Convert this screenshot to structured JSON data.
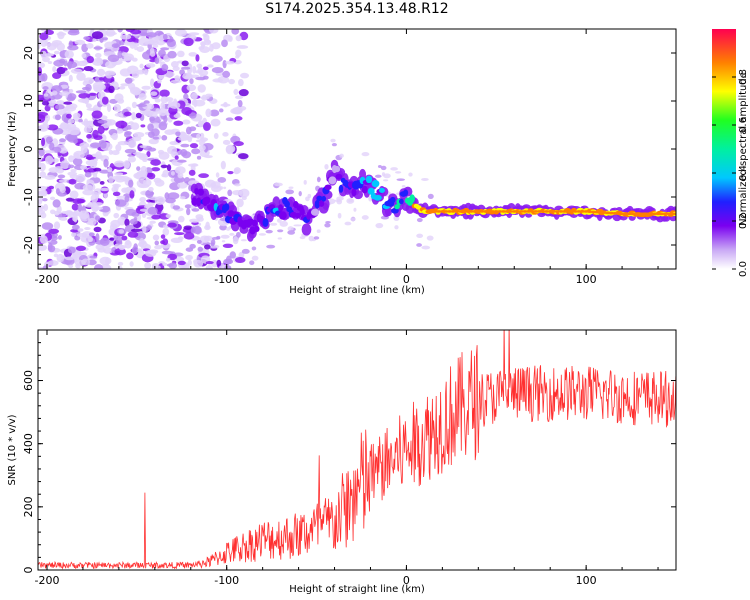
{
  "title": "S174.2025.354.13.48.R12",
  "chart_data": [
    {
      "type": "heatmap",
      "name": "spectrogram",
      "xlabel": "Height of straight line (km)",
      "ylabel": "Frequency (Hz)",
      "xlim": [
        -205,
        150
      ],
      "ylim": [
        -25,
        25
      ],
      "xticks": [
        -200,
        -100,
        0,
        100
      ],
      "yticks": [
        -20,
        -10,
        0,
        10,
        20
      ],
      "colorbar": {
        "label": "Normalized spectral amplitude",
        "range": [
          0,
          1
        ],
        "ticks": [
          0.0,
          0.2,
          0.4,
          0.6,
          0.8
        ]
      },
      "ridge": {
        "description": "signal ridge frequency vs height",
        "x": [
          -115,
          -105,
          -95,
          -85,
          -75,
          -65,
          -55,
          -45,
          -40,
          -35,
          -30,
          -25,
          -20,
          -15,
          -10,
          -5,
          0,
          5,
          10,
          20,
          40,
          60,
          80,
          100,
          120,
          150
        ],
        "freq": [
          -10,
          -13,
          -14,
          -17,
          -13,
          -12,
          -15,
          -10,
          -4,
          -8,
          -9,
          -7,
          -8,
          -9,
          -12,
          -12,
          -10,
          -12,
          -13,
          -13,
          -13,
          -13,
          -13,
          -13,
          -13.5,
          -13.5
        ],
        "amplitude": [
          0.3,
          0.35,
          0.3,
          0.25,
          0.35,
          0.3,
          0.25,
          0.3,
          0.2,
          0.3,
          0.3,
          0.35,
          0.35,
          0.4,
          0.45,
          0.5,
          0.55,
          0.8,
          0.9,
          0.95,
          0.95,
          0.9,
          0.95,
          0.9,
          0.95,
          0.95
        ]
      },
      "noise_region_x": [
        -205,
        -110
      ]
    },
    {
      "type": "line",
      "name": "snr",
      "xlabel": "Height of straight line (km)",
      "ylabel": "SNR (10 * v/v)",
      "xlim": [
        -205,
        150
      ],
      "ylim": [
        0,
        760
      ],
      "xticks": [
        -200,
        -100,
        0,
        100
      ],
      "yticks": [
        0,
        200,
        400,
        600
      ],
      "color": "#ff3030",
      "trend": {
        "x": [
          -205,
          -120,
          -110,
          -100,
          -80,
          -60,
          -40,
          -20,
          0,
          10,
          20,
          30,
          40,
          60,
          80,
          100,
          120,
          150
        ],
        "y": [
          15,
          15,
          25,
          55,
          95,
          110,
          150,
          300,
          380,
          420,
          470,
          510,
          540,
          560,
          560,
          560,
          550,
          540
        ]
      }
    }
  ]
}
